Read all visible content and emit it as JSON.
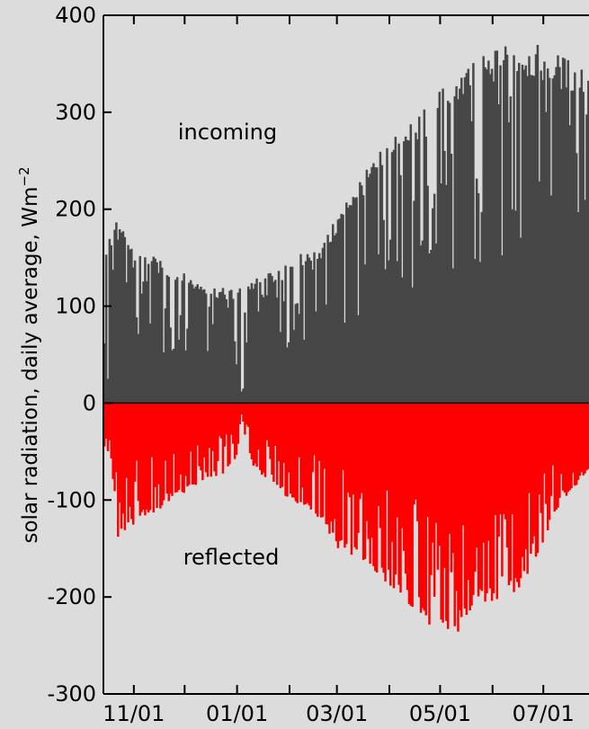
{
  "chart_data": {
    "type": "bar",
    "ylabel": "solar radiation, daily average, Wm",
    "ylabel_superscript": "−2",
    "ylim": [
      -300,
      400
    ],
    "yticks": [
      -300,
      -200,
      -100,
      0,
      100,
      200,
      300,
      400
    ],
    "xlim": [
      "2009-10-14",
      "2010-07-28"
    ],
    "xticks": [
      {
        "date": "2009-11-01",
        "label": "11/01"
      },
      {
        "date": "2010-01-01",
        "label": "01/01"
      },
      {
        "date": "2010-03-01",
        "label": "03/01"
      },
      {
        "date": "2010-05-01",
        "label": "05/01"
      },
      {
        "date": "2010-07-01",
        "label": "07/01"
      }
    ],
    "minor_tick_dates": [
      "2009-12-01",
      "2010-02-01",
      "2010-04-01",
      "2010-06-01"
    ],
    "annotations": [
      "incoming",
      "reflected"
    ],
    "colors": {
      "background": "#dcdcdc",
      "incoming": "#474747",
      "reflected": "#ff0000",
      "axis": "#000000"
    },
    "grid": false,
    "series": [
      {
        "name": "incoming",
        "anchors": [
          [
            "2009-10-14",
            165
          ],
          [
            "2009-10-20",
            190
          ],
          [
            "2009-10-28",
            170
          ],
          [
            "2009-11-05",
            160
          ],
          [
            "2009-11-15",
            148
          ],
          [
            "2009-11-25",
            138
          ],
          [
            "2009-12-05",
            130
          ],
          [
            "2009-12-15",
            122
          ],
          [
            "2009-12-25",
            118
          ],
          [
            "2010-01-01",
            118
          ],
          [
            "2010-01-05",
            125
          ],
          [
            "2010-01-10",
            128
          ],
          [
            "2010-01-20",
            135
          ],
          [
            "2010-02-01",
            148
          ],
          [
            "2010-02-10",
            158
          ],
          [
            "2010-02-20",
            165
          ],
          [
            "2010-03-01",
            195
          ],
          [
            "2010-03-10",
            225
          ],
          [
            "2010-03-20",
            245
          ],
          [
            "2010-04-01",
            275
          ],
          [
            "2010-04-10",
            292
          ],
          [
            "2010-04-20",
            310
          ],
          [
            "2010-05-01",
            330
          ],
          [
            "2010-05-10",
            345
          ],
          [
            "2010-05-20",
            352
          ],
          [
            "2010-06-01",
            365
          ],
          [
            "2010-06-10",
            375
          ],
          [
            "2010-06-20",
            372
          ],
          [
            "2010-07-01",
            368
          ],
          [
            "2010-07-10",
            360
          ],
          [
            "2010-07-20",
            352
          ],
          [
            "2010-07-28",
            350
          ]
        ],
        "dips": [
          {
            "date": "2009-10-16",
            "value": 25
          },
          {
            "date": "2009-12-31",
            "value": 40
          },
          {
            "date": "2010-01-03",
            "value": 12
          },
          {
            "date": "2010-01-04",
            "value": 15
          }
        ]
      },
      {
        "name": "reflected",
        "anchors": [
          [
            "2009-10-14",
            -45
          ],
          [
            "2009-10-18",
            -60
          ],
          [
            "2009-10-22",
            -140
          ],
          [
            "2009-10-28",
            -128
          ],
          [
            "2009-11-05",
            -122
          ],
          [
            "2009-11-15",
            -110
          ],
          [
            "2009-11-25",
            -98
          ],
          [
            "2009-12-05",
            -88
          ],
          [
            "2009-12-15",
            -78
          ],
          [
            "2009-12-25",
            -72
          ],
          [
            "2009-12-31",
            -55
          ],
          [
            "2010-01-03",
            -20
          ],
          [
            "2010-01-06",
            -42
          ],
          [
            "2010-01-10",
            -65
          ],
          [
            "2010-01-20",
            -85
          ],
          [
            "2010-02-01",
            -100
          ],
          [
            "2010-02-10",
            -110
          ],
          [
            "2010-02-20",
            -125
          ],
          [
            "2010-03-01",
            -150
          ],
          [
            "2010-03-10",
            -160
          ],
          [
            "2010-03-20",
            -170
          ],
          [
            "2010-04-01",
            -190
          ],
          [
            "2010-04-10",
            -205
          ],
          [
            "2010-04-20",
            -225
          ],
          [
            "2010-05-01",
            -235
          ],
          [
            "2010-05-10",
            -250
          ],
          [
            "2010-05-20",
            -210
          ],
          [
            "2010-06-01",
            -205
          ],
          [
            "2010-06-10",
            -200
          ],
          [
            "2010-06-20",
            -185
          ],
          [
            "2010-07-01",
            -140
          ],
          [
            "2010-07-10",
            -105
          ],
          [
            "2010-07-20",
            -85
          ],
          [
            "2010-07-28",
            -70
          ]
        ]
      }
    ]
  }
}
